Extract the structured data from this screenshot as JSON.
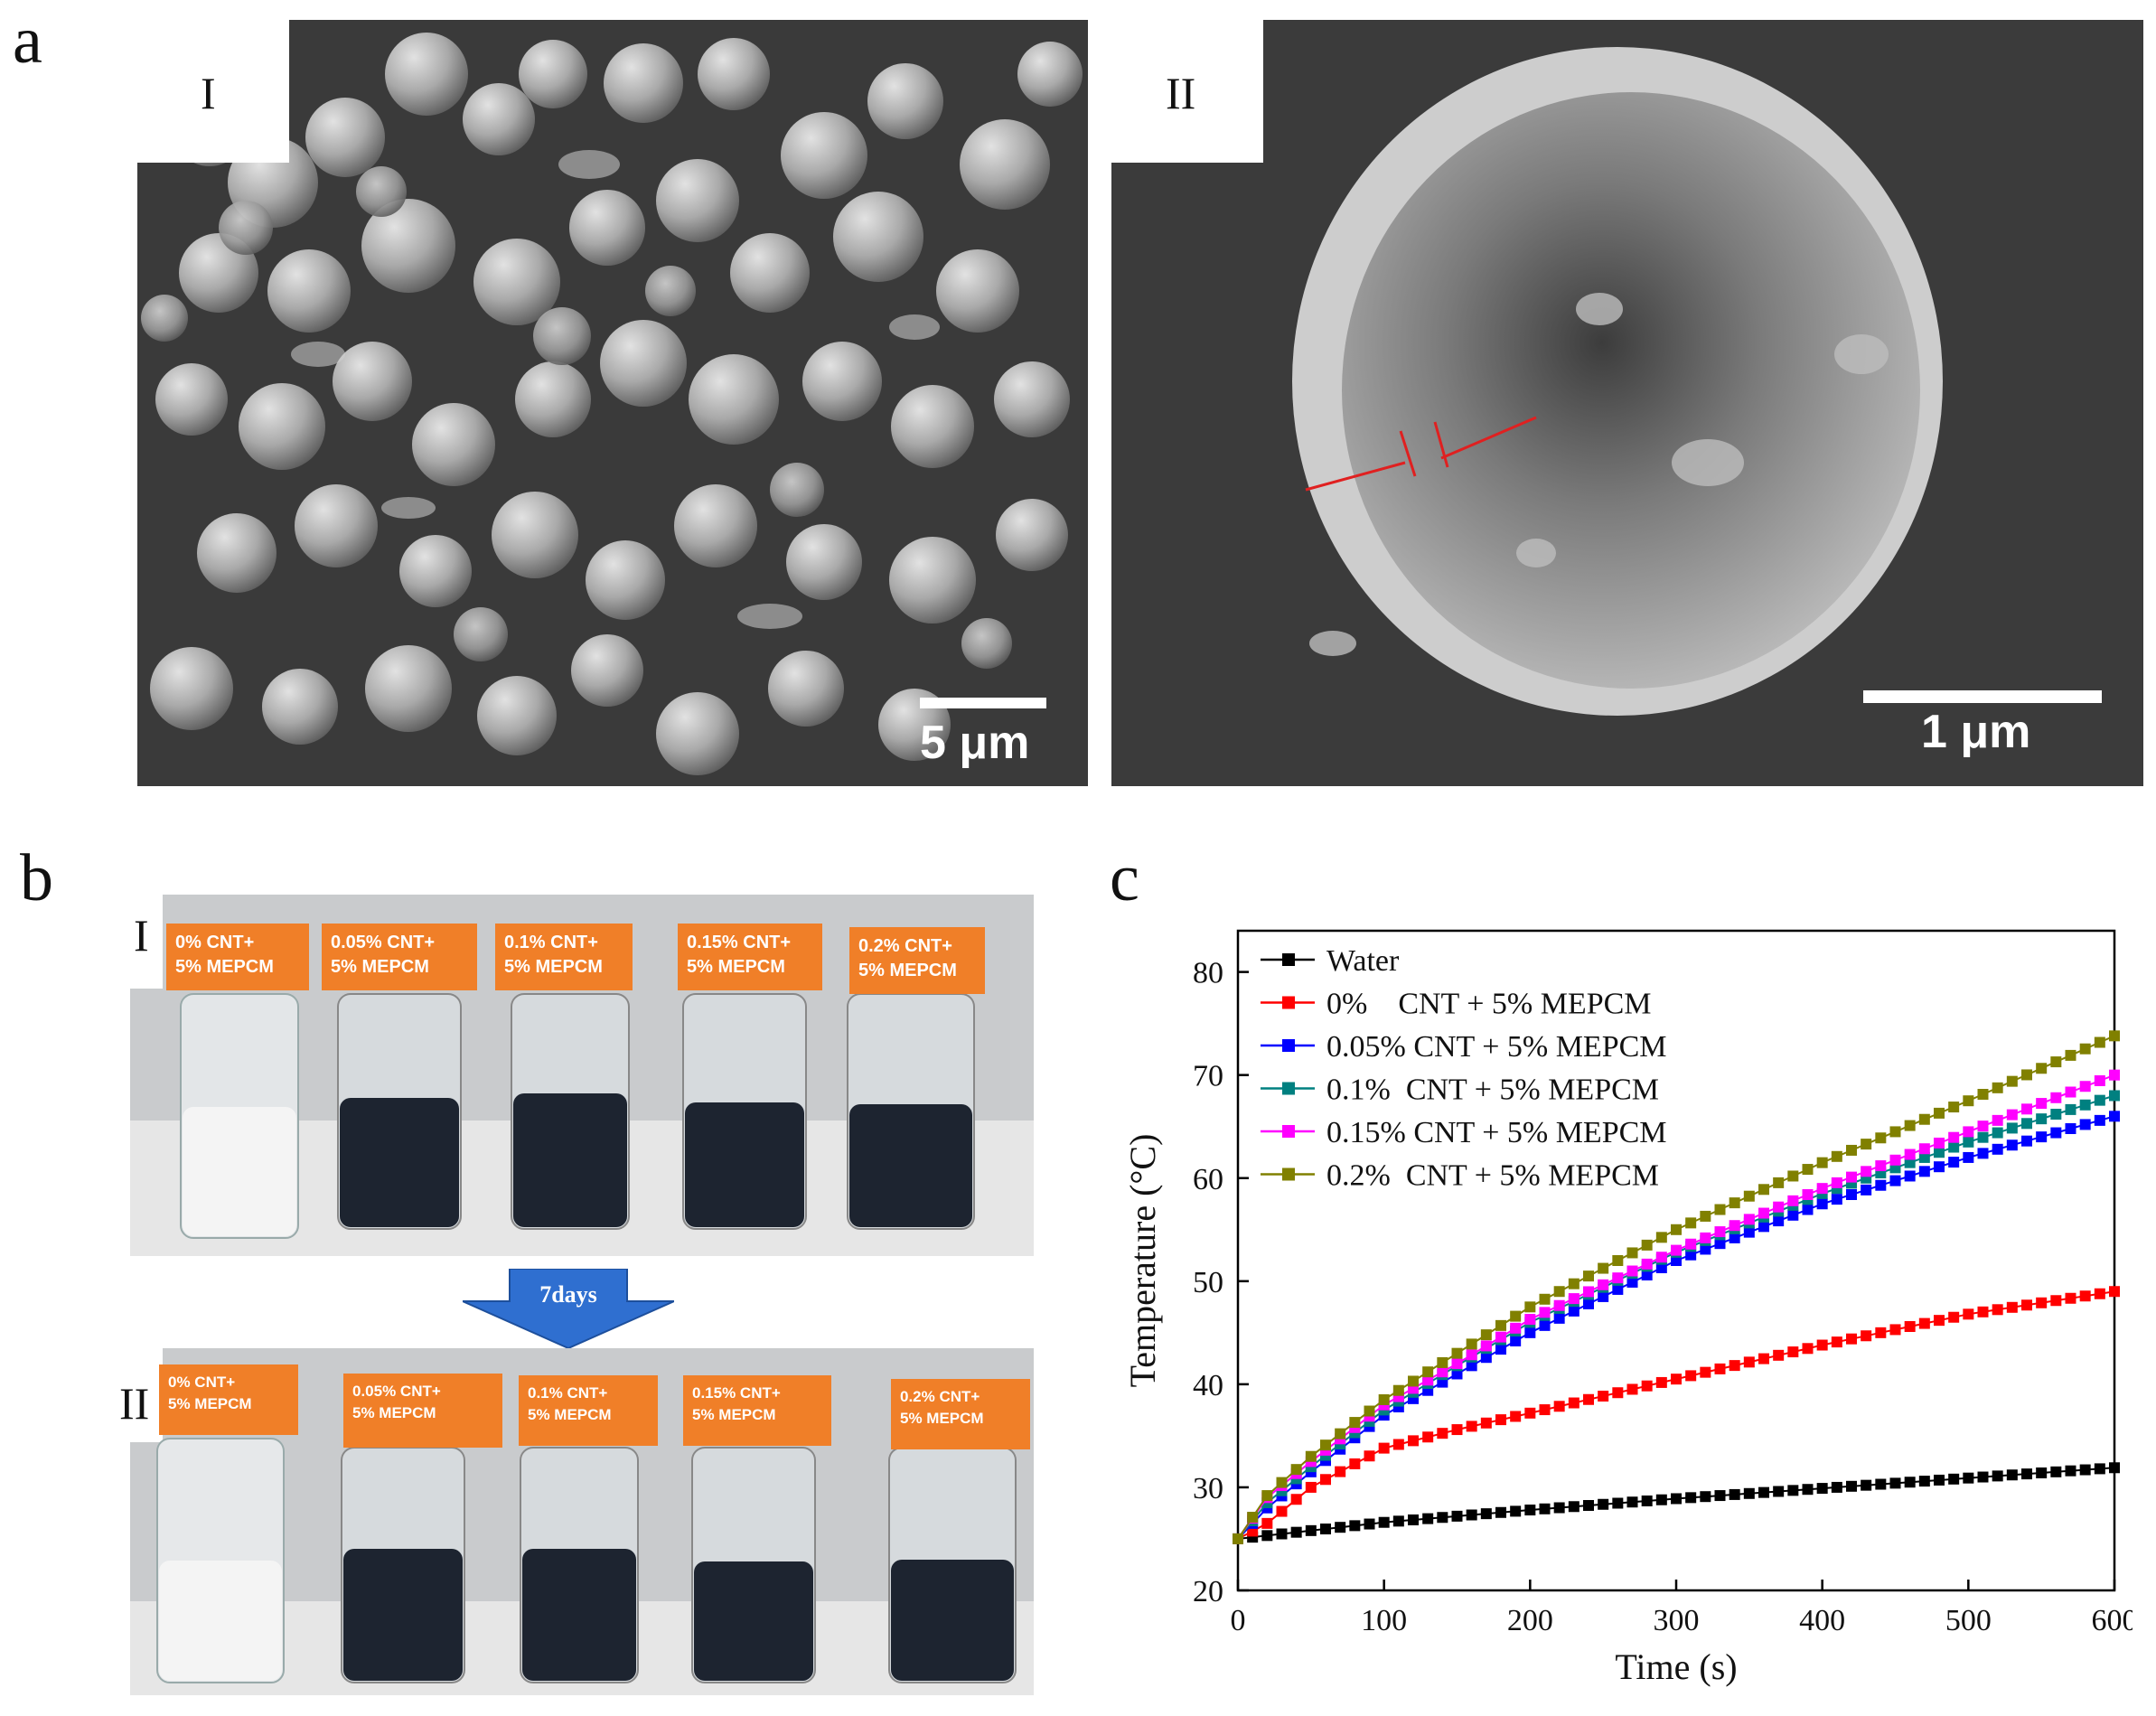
{
  "figure": {
    "panel_a": {
      "letter": "a",
      "sub_I": {
        "label": "I",
        "scalebar": "5 μm"
      },
      "sub_II": {
        "label": "II",
        "scalebar": "1 μm"
      }
    },
    "panel_b": {
      "letter": "b",
      "sub_I": {
        "label": "I",
        "vials": [
          "0% CNT+\n5% MEPCM",
          "0.05% CNT+\n5% MEPCM",
          "0.1% CNT+\n5% MEPCM",
          "0.15% CNT+\n5% MEPCM",
          "0.2% CNT+\n5% MEPCM"
        ]
      },
      "arrow_label": "7days",
      "sub_II": {
        "label": "II",
        "vials": [
          "0% CNT+\n5% MEPCM",
          "0.05% CNT+\n5% MEPCM",
          "0.1% CNT+\n5% MEPCM",
          "0.15% CNT+\n5% MEPCM",
          "0.2% CNT+\n5% MEPCM"
        ]
      },
      "colors": {
        "label_bg": "#f07f28",
        "arrow": "#2f6fd0",
        "dark_fluid": "#1d2430",
        "white_fluid": "#f4f4f4"
      }
    },
    "panel_c": {
      "letter": "c"
    }
  },
  "chart_data": {
    "type": "line",
    "xlabel": "Time (s)",
    "ylabel": "Temperature (°C)",
    "xlim": [
      0,
      600
    ],
    "ylim": [
      20,
      84
    ],
    "xticks": [
      0,
      100,
      200,
      300,
      400,
      500,
      600
    ],
    "yticks": [
      20,
      30,
      40,
      50,
      60,
      70,
      80
    ],
    "marker": "square",
    "legend_position": "top-left",
    "series": [
      {
        "name": "Water",
        "color": "#000000",
        "x": [
          0,
          100,
          200,
          300,
          400,
          500,
          600
        ],
        "y": [
          25,
          26.6,
          27.8,
          28.9,
          29.9,
          30.9,
          31.9
        ]
      },
      {
        "name": "0%    CNT + 5% MEPCM",
        "color": "#ff0000",
        "x": [
          0,
          20,
          50,
          100,
          150,
          200,
          300,
          400,
          500,
          600
        ],
        "y": [
          25,
          26.5,
          30,
          33.8,
          35.6,
          37.2,
          40.5,
          43.8,
          46.8,
          49.0
        ]
      },
      {
        "name": "0.05% CNT + 5% MEPCM",
        "color": "#0000ff",
        "x": [
          0,
          20,
          50,
          100,
          150,
          200,
          300,
          400,
          500,
          600
        ],
        "y": [
          25,
          28,
          31.5,
          37,
          41,
          45,
          52,
          57.5,
          62,
          66
        ]
      },
      {
        "name": "0.1%  CNT + 5% MEPCM",
        "color": "#008080",
        "x": [
          0,
          20,
          50,
          100,
          150,
          200,
          300,
          400,
          500,
          600
        ],
        "y": [
          25,
          28.5,
          32,
          37.5,
          41.8,
          46,
          52.8,
          58.5,
          63.5,
          68
        ]
      },
      {
        "name": "0.15% CNT + 5% MEPCM",
        "color": "#ff00ff",
        "x": [
          0,
          20,
          50,
          100,
          150,
          200,
          300,
          400,
          500,
          600
        ],
        "y": [
          25,
          29,
          32.5,
          38,
          42,
          46.3,
          53,
          59,
          64.5,
          70
        ]
      },
      {
        "name": "0.2%  CNT + 5% MEPCM",
        "color": "#808000",
        "x": [
          0,
          20,
          50,
          100,
          150,
          200,
          300,
          400,
          500,
          600
        ],
        "y": [
          25,
          29.2,
          33,
          38.5,
          43,
          47.5,
          55,
          61.5,
          67.5,
          73.8
        ]
      }
    ]
  }
}
